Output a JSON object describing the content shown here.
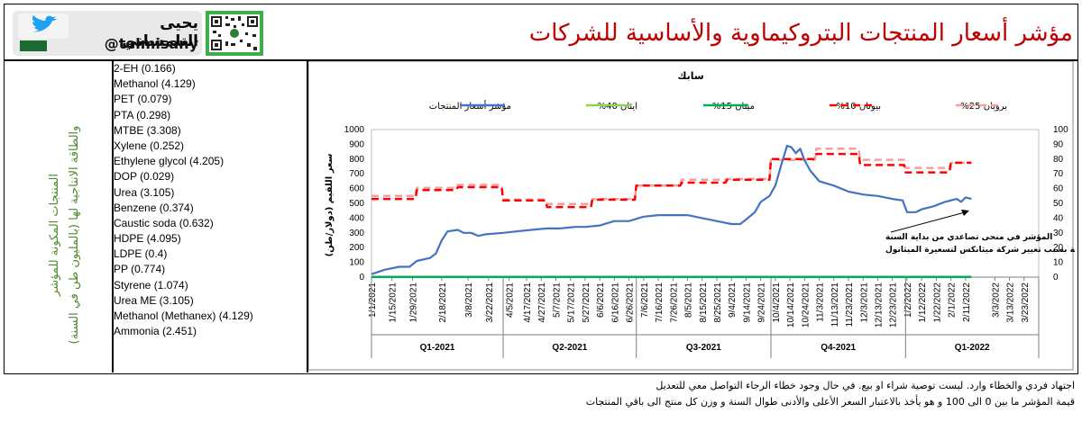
{
  "header": {
    "title": "مؤشر أسعار المنتجات البتروكيماوية والأساسية للشركات السعودية",
    "author_name": "يحيى التلمساني",
    "author_handle": "@telmisany"
  },
  "sidebar": {
    "caption_line1": "المنتجات المكونة للمؤشر",
    "caption_line2": "والطاقة الانتاجية لها (بالمليون طن في السنة)",
    "items": [
      "2-EH (0.166)",
      "Methanol (4.129)",
      "PET (0.079)",
      "PTA (0.298)",
      "MTBE (3.308)",
      "Xylene (0.252)",
      "Ethylene glycol (4.205)",
      "DOP (0.029)",
      "Urea (3.105)",
      "Benzene (0.374)",
      "Caustic soda (0.632)",
      "HDPE (4.095)",
      "LDPE (0.4)",
      "PP (0.774)",
      "Styrene (1.074)",
      "Urea ME (3.105)",
      "Methanol (Methanex) (4.129)",
      "Ammonia (2.451)"
    ]
  },
  "notes": {
    "line1": "اجتهاد فردي والخطاء وارد. ليست توصية شراء او بيع. في حال وجود خطاء الرجاء التواصل معي للتعديل",
    "line2": "قيمة المؤشر ما بين 0 الى 100 و هو يأخذ بالاعتبار السعر الأعلى والأدنى طوال السنة و وزن كل منتج الى باقي المنتجات"
  },
  "colors": {
    "index_line": "#4472c4",
    "ethylene": "#92d050",
    "methane": "#00b050",
    "butane": "#ff0000",
    "propane": "#f4a0a0",
    "title_red": "#c00000"
  },
  "chart_data": {
    "type": "line",
    "title": "سابك",
    "ylabel_left": "سعر اللقيم (دولار/طن)",
    "ylim_left": [
      0,
      1000
    ],
    "yticks_left": [
      "0",
      "100",
      "200",
      "300",
      "400",
      "500",
      "600",
      "700",
      "800",
      "900",
      "1000"
    ],
    "ylim_right": [
      0,
      100
    ],
    "yticks_right": [
      "0",
      "10",
      "20",
      "30",
      "40",
      "50",
      "60",
      "70",
      "80",
      "90",
      "100"
    ],
    "x_start": "2021-01-01",
    "x_end": "2022-04-02",
    "x_ticks": [
      "1/1/2021",
      "1/15/2021",
      "1/29/2021",
      "2/18/2021",
      "3/8/2021",
      "3/22/2021",
      "4/5/2021",
      "4/17/2021",
      "4/27/2021",
      "5/7/2021",
      "5/17/2021",
      "5/27/2021",
      "6/6/2021",
      "6/16/2021",
      "6/26/2021",
      "7/6/2021",
      "7/16/2021",
      "7/26/2021",
      "8/5/2021",
      "8/15/2021",
      "8/25/2021",
      "9/4/2021",
      "9/14/2021",
      "9/24/2021",
      "10/4/2021",
      "10/14/2021",
      "10/24/2021",
      "11/3/2021",
      "11/13/2021",
      "11/23/2021",
      "12/3/2021",
      "12/13/2021",
      "12/23/2021",
      "1/2/2022",
      "1/12/2022",
      "1/22/2022",
      "2/1/2022",
      "2/11/2022",
      "3/3/2022",
      "3/13/2022",
      "3/23/2022"
    ],
    "quarters": [
      "Q1-2021",
      "Q2-2021",
      "Q3-2021",
      "Q4-2021",
      "Q1-2022"
    ],
    "legend": [
      {
        "name": "بروبان 25%",
        "key": "propane",
        "style": "dash"
      },
      {
        "name": "بيوتان 10%",
        "key": "butane",
        "style": "dash"
      },
      {
        "name": "ميثان 15%",
        "key": "methane",
        "style": "solid"
      },
      {
        "name": "ايثان 40%",
        "key": "ethylene",
        "style": "solid"
      },
      {
        "name": "مؤشر أسعار المنتجات",
        "key": "index_line",
        "style": "solid"
      }
    ],
    "annotation": {
      "line1": "المؤشر في منحى تصاعدي من بداية السنة",
      "line2": "هبط قليلا بداية السنة بسبب تغيير شركة ميثانكس لتسعيرة الميثانول"
    },
    "series": [
      {
        "name": "مؤشر أسعار المنتجات",
        "key": "index_line",
        "axis": "right",
        "points": [
          [
            "2021-01-01",
            2
          ],
          [
            "2021-01-10",
            5
          ],
          [
            "2021-01-20",
            7
          ],
          [
            "2021-01-27",
            7
          ],
          [
            "2021-02-01",
            11
          ],
          [
            "2021-02-10",
            13
          ],
          [
            "2021-02-14",
            16
          ],
          [
            "2021-02-18",
            25
          ],
          [
            "2021-02-22",
            31
          ],
          [
            "2021-03-01",
            32
          ],
          [
            "2021-03-05",
            30
          ],
          [
            "2021-03-10",
            30
          ],
          [
            "2021-03-15",
            28
          ],
          [
            "2021-03-20",
            29
          ],
          [
            "2021-04-01",
            30
          ],
          [
            "2021-04-10",
            31
          ],
          [
            "2021-04-20",
            32
          ],
          [
            "2021-05-01",
            33
          ],
          [
            "2021-05-10",
            33
          ],
          [
            "2021-05-20",
            34
          ],
          [
            "2021-05-27",
            34
          ],
          [
            "2021-06-06",
            35
          ],
          [
            "2021-06-16",
            38
          ],
          [
            "2021-06-26",
            38
          ],
          [
            "2021-07-06",
            41
          ],
          [
            "2021-07-16",
            42
          ],
          [
            "2021-07-26",
            42
          ],
          [
            "2021-08-05",
            42
          ],
          [
            "2021-08-15",
            40
          ],
          [
            "2021-08-25",
            38
          ],
          [
            "2021-09-04",
            36
          ],
          [
            "2021-09-10",
            36
          ],
          [
            "2021-09-14",
            39
          ],
          [
            "2021-09-20",
            44
          ],
          [
            "2021-09-24",
            51
          ],
          [
            "2021-09-30",
            55
          ],
          [
            "2021-10-04",
            62
          ],
          [
            "2021-10-08",
            76
          ],
          [
            "2021-10-12",
            89
          ],
          [
            "2021-10-15",
            88
          ],
          [
            "2021-10-18",
            84
          ],
          [
            "2021-10-21",
            87
          ],
          [
            "2021-10-24",
            79
          ],
          [
            "2021-10-28",
            72
          ],
          [
            "2021-11-03",
            65
          ],
          [
            "2021-11-13",
            62
          ],
          [
            "2021-11-23",
            58
          ],
          [
            "2021-12-03",
            56
          ],
          [
            "2021-12-13",
            55
          ],
          [
            "2021-12-23",
            53
          ],
          [
            "2021-12-30",
            52
          ],
          [
            "2022-01-02",
            44
          ],
          [
            "2022-01-08",
            44
          ],
          [
            "2022-01-12",
            46
          ],
          [
            "2022-01-20",
            48
          ],
          [
            "2022-01-28",
            51
          ],
          [
            "2022-02-01",
            52
          ],
          [
            "2022-02-05",
            53
          ],
          [
            "2022-02-08",
            51
          ],
          [
            "2022-02-11",
            54
          ],
          [
            "2022-02-15",
            53
          ]
        ]
      },
      {
        "name": "بيوتان 10%",
        "key": "butane",
        "axis": "left",
        "points": [
          [
            "2021-01-01",
            530
          ],
          [
            "2021-01-31",
            530
          ],
          [
            "2021-02-01",
            590
          ],
          [
            "2021-02-28",
            590
          ],
          [
            "2021-03-01",
            610
          ],
          [
            "2021-03-31",
            610
          ],
          [
            "2021-04-01",
            520
          ],
          [
            "2021-04-30",
            520
          ],
          [
            "2021-05-01",
            475
          ],
          [
            "2021-05-31",
            475
          ],
          [
            "2021-06-01",
            525
          ],
          [
            "2021-06-30",
            525
          ],
          [
            "2021-07-01",
            620
          ],
          [
            "2021-07-31",
            620
          ],
          [
            "2021-08-01",
            640
          ],
          [
            "2021-08-31",
            640
          ],
          [
            "2021-09-01",
            660
          ],
          [
            "2021-09-30",
            660
          ],
          [
            "2021-10-01",
            800
          ],
          [
            "2021-10-31",
            800
          ],
          [
            "2021-11-01",
            835
          ],
          [
            "2021-11-30",
            835
          ],
          [
            "2021-12-01",
            760
          ],
          [
            "2021-12-31",
            760
          ],
          [
            "2022-01-01",
            710
          ],
          [
            "2022-01-31",
            710
          ],
          [
            "2022-02-01",
            775
          ],
          [
            "2022-02-15",
            775
          ]
        ]
      },
      {
        "name": "بروبان 25%",
        "key": "propane",
        "axis": "left",
        "points": [
          [
            "2021-01-01",
            550
          ],
          [
            "2021-01-31",
            550
          ],
          [
            "2021-02-01",
            605
          ],
          [
            "2021-02-28",
            605
          ],
          [
            "2021-03-01",
            625
          ],
          [
            "2021-03-31",
            625
          ],
          [
            "2021-04-01",
            525
          ],
          [
            "2021-04-30",
            525
          ],
          [
            "2021-05-01",
            495
          ],
          [
            "2021-05-31",
            495
          ],
          [
            "2021-06-01",
            530
          ],
          [
            "2021-06-30",
            530
          ],
          [
            "2021-07-01",
            620
          ],
          [
            "2021-07-31",
            620
          ],
          [
            "2021-08-01",
            660
          ],
          [
            "2021-08-31",
            660
          ],
          [
            "2021-09-01",
            665
          ],
          [
            "2021-09-30",
            665
          ],
          [
            "2021-10-01",
            795
          ],
          [
            "2021-10-31",
            795
          ],
          [
            "2021-11-01",
            870
          ],
          [
            "2021-11-30",
            870
          ],
          [
            "2021-12-01",
            795
          ],
          [
            "2021-12-31",
            795
          ],
          [
            "2022-01-01",
            740
          ],
          [
            "2022-01-31",
            740
          ],
          [
            "2022-02-01",
            775
          ],
          [
            "2022-02-15",
            775
          ]
        ]
      },
      {
        "name": "ميثان 15%",
        "key": "methane",
        "axis": "left",
        "points": [
          [
            "2021-01-01",
            2
          ],
          [
            "2022-02-15",
            2
          ]
        ]
      },
      {
        "name": "ايثان 40%",
        "key": "ethylene",
        "axis": "left",
        "points": [
          [
            "2021-01-01",
            2
          ],
          [
            "2022-02-15",
            2
          ]
        ]
      }
    ]
  }
}
